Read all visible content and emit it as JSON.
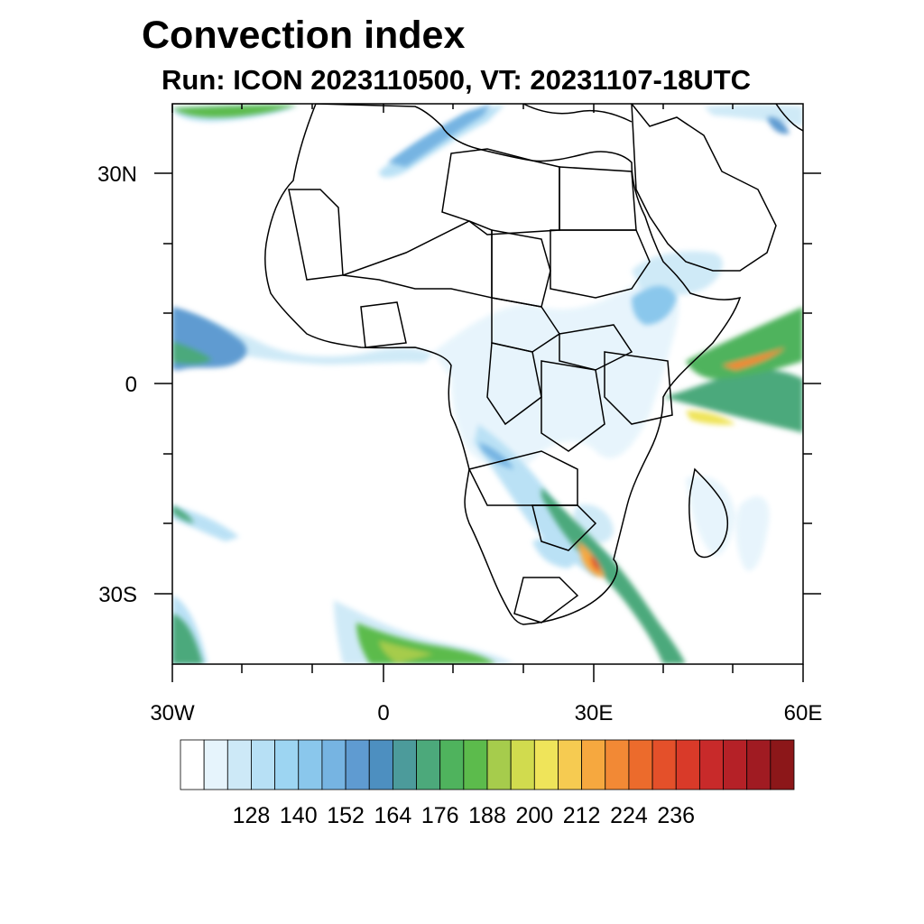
{
  "title": "Convection index",
  "subtitle": "Run: ICON 2023110500,  VT: 20231107-18UTC",
  "axes": {
    "lat_labels": [
      "30N",
      "0",
      "30S"
    ],
    "lon_labels": [
      "30W",
      "0",
      "30E",
      "60E"
    ]
  },
  "colorbar": {
    "colors": [
      "#ffffff",
      "#e6f4fc",
      "#cde9f7",
      "#b7e0f5",
      "#9dd5f2",
      "#8ac7ec",
      "#76b4e2",
      "#5f9bd1",
      "#4d8fc0",
      "#4c9b9b",
      "#4ca97b",
      "#4fb35d",
      "#5cbb4c",
      "#a6cc4c",
      "#d1db4e",
      "#efe45a",
      "#f6cb51",
      "#f6a83f",
      "#f28935",
      "#ec6b2c",
      "#e4502a",
      "#d93a29",
      "#c82a2a",
      "#b52127",
      "#a01b22",
      "#8c1719"
    ],
    "labels": [
      "128",
      "140",
      "152",
      "164",
      "176",
      "188",
      "200",
      "212",
      "224",
      "236"
    ]
  }
}
